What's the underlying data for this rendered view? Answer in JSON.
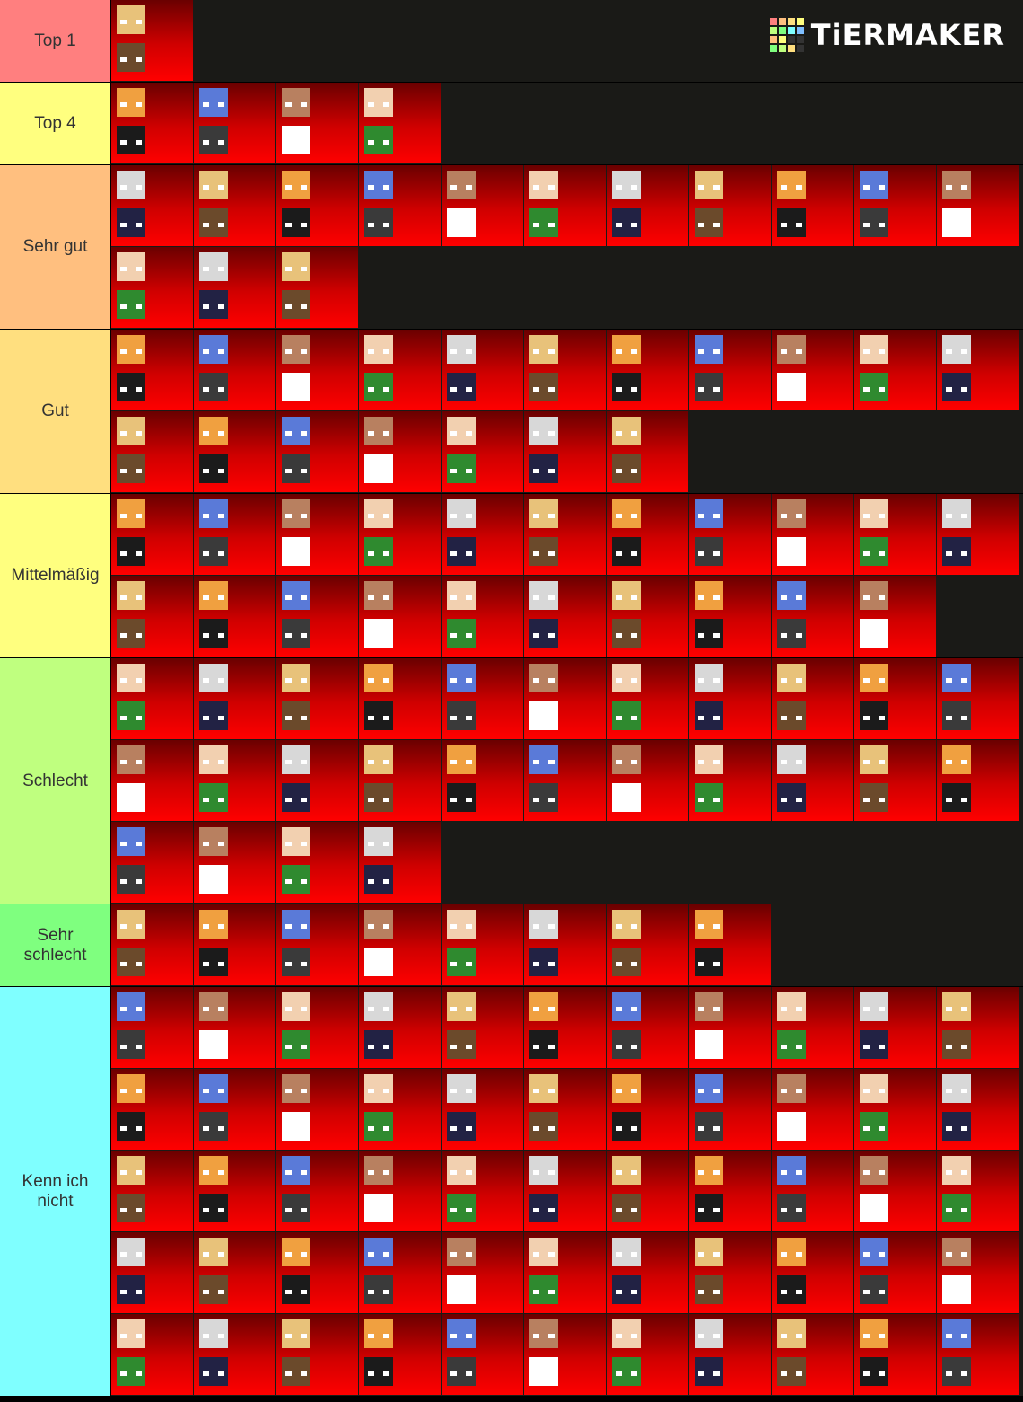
{
  "logo": "TiERMAKER",
  "tiers": [
    {
      "label": "Top 1",
      "color": "#ff7f7f",
      "tiles": 1
    },
    {
      "label": "Top 4",
      "color": "#ffff7f",
      "tiles": 4
    },
    {
      "label": "Sehr gut",
      "color": "#ffbf7f",
      "tiles": 14
    },
    {
      "label": "Gut",
      "color": "#ffdf7f",
      "tiles": 18
    },
    {
      "label": "Mittelmäßig",
      "color": "#ffff7f",
      "tiles": 21
    },
    {
      "label": "Schlecht",
      "color": "#bfff7f",
      "tiles": 26
    },
    {
      "label": "Sehr schlecht",
      "color": "#7fff7f",
      "tiles": 8
    },
    {
      "label": "Kenn ich nicht",
      "color": "#7fffff",
      "tiles": 55
    }
  ]
}
